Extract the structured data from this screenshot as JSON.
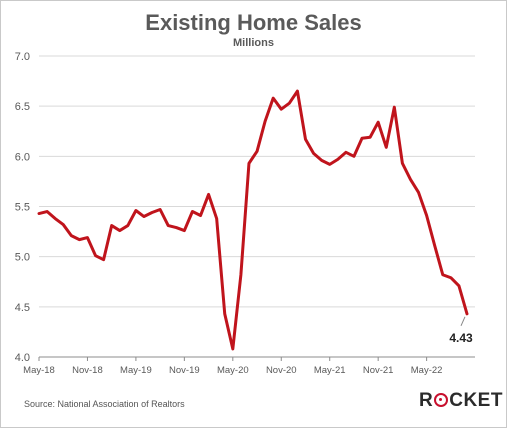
{
  "chart_data": {
    "type": "line",
    "title": "Existing Home Sales",
    "subtitle": "Millions",
    "xlabel": "",
    "ylabel": "",
    "ylim": [
      4.0,
      7.0
    ],
    "yticks": [
      "4.0",
      "4.5",
      "5.0",
      "5.5",
      "6.0",
      "6.5",
      "7.0"
    ],
    "xtick_labels": [
      "May-18",
      "Nov-18",
      "May-19",
      "Nov-19",
      "May-20",
      "Nov-20",
      "May-21",
      "Nov-21",
      "May-22"
    ],
    "x": [
      "May-18",
      "Jun-18",
      "Jul-18",
      "Aug-18",
      "Sep-18",
      "Oct-18",
      "Nov-18",
      "Dec-18",
      "Jan-19",
      "Feb-19",
      "Mar-19",
      "Apr-19",
      "May-19",
      "Jun-19",
      "Jul-19",
      "Aug-19",
      "Sep-19",
      "Oct-19",
      "Nov-19",
      "Dec-19",
      "Jan-20",
      "Feb-20",
      "Mar-20",
      "Apr-20",
      "May-20",
      "Jun-20",
      "Jul-20",
      "Aug-20",
      "Sep-20",
      "Oct-20",
      "Nov-20",
      "Dec-20",
      "Jan-21",
      "Feb-21",
      "Mar-21",
      "Apr-21",
      "May-21",
      "Jun-21",
      "Jul-21",
      "Aug-21",
      "Sep-21",
      "Oct-21",
      "Nov-21",
      "Dec-21",
      "Jan-22",
      "Feb-22",
      "Mar-22",
      "Apr-22",
      "May-22",
      "Jun-22",
      "Jul-22",
      "Aug-22",
      "Sep-22",
      "Oct-22"
    ],
    "series": [
      {
        "values": [
          5.43,
          5.45,
          5.38,
          5.32,
          5.21,
          5.17,
          5.19,
          5.01,
          4.97,
          5.31,
          5.26,
          5.31,
          5.46,
          5.4,
          5.44,
          5.47,
          5.31,
          5.29,
          5.26,
          5.45,
          5.41,
          5.62,
          5.38,
          4.43,
          4.08,
          4.82,
          5.93,
          6.05,
          6.35,
          6.58,
          6.47,
          6.53,
          6.65,
          6.17,
          6.03,
          5.96,
          5.92,
          5.97,
          6.04,
          6.0,
          6.18,
          6.19,
          6.34,
          6.09,
          6.49,
          5.93,
          5.77,
          5.64,
          5.41,
          5.11,
          4.82,
          4.79,
          4.71,
          4.43
        ],
        "color": "#c0141c"
      }
    ],
    "annotation": {
      "text": "4.43",
      "x": "Oct-22",
      "y": 4.43
    },
    "grid": {
      "horizontal": true,
      "vertical": false
    }
  },
  "footer": {
    "source": "Source: National Association of Realtors",
    "logo_left": "R",
    "logo_right": "CKET"
  },
  "colors": {
    "line": "#c0141c",
    "grid": "#d9d9d9",
    "axis_text": "#595959",
    "title": "#5a5a5a"
  }
}
